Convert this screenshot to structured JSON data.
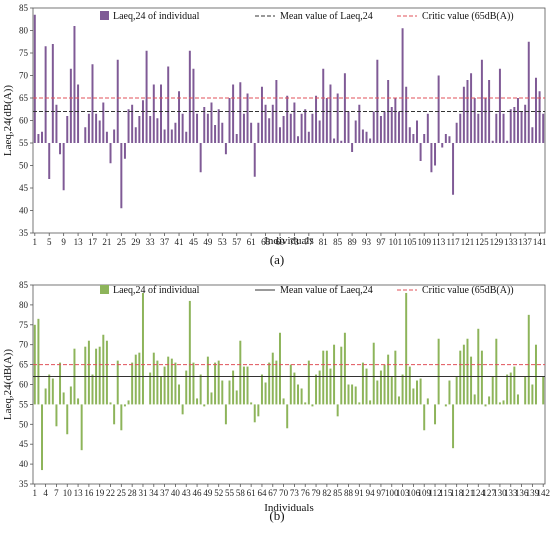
{
  "chart_data": [
    {
      "type": "bar",
      "panel_label": "(a)",
      "xlabel": "Individuals",
      "ylabel": "Laeq,24(dB(A))",
      "ylim": [
        35,
        85
      ],
      "yticks": [
        35,
        40,
        45,
        50,
        55,
        60,
        65,
        70,
        75,
        80,
        85
      ],
      "baseline": 55,
      "n": 142,
      "xticks": [
        1,
        5,
        9,
        13,
        17,
        21,
        25,
        29,
        33,
        37,
        41,
        45,
        49,
        53,
        57,
        61,
        65,
        69,
        73,
        77,
        81,
        85,
        89,
        93,
        97,
        101,
        105,
        109,
        113,
        117,
        121,
        125,
        129,
        133,
        137,
        141
      ],
      "bar_color": "#7f5a96",
      "legend": {
        "individual": "Laeq,24 of individual",
        "mean": "Mean value of Laeq,24",
        "critic": "Critic value (65dB(A))"
      },
      "mean_value": 62,
      "critic_value": 65,
      "values": [
        83.5,
        57,
        57.5,
        76.5,
        47,
        77,
        63.5,
        52.5,
        44.5,
        61,
        71.5,
        81,
        68,
        55,
        58.5,
        61.5,
        72.5,
        61.5,
        60,
        64,
        57.5,
        50.5,
        58,
        73.5,
        40.5,
        51.5,
        62.5,
        63.5,
        58.5,
        61,
        64.5,
        75.5,
        61,
        68,
        60.5,
        68,
        58,
        72,
        58,
        59.5,
        66.5,
        61.5,
        57.5,
        75.5,
        71.5,
        61.5,
        48.5,
        63,
        61.5,
        64,
        59,
        62.5,
        59.5,
        52.5,
        65,
        68,
        57,
        68.5,
        61.5,
        66,
        59.5,
        47.5,
        59.5,
        67.5,
        63.5,
        60.5,
        63.5,
        69,
        58.5,
        61,
        65.5,
        61.5,
        64,
        56.5,
        61.5,
        62.5,
        57.5,
        61.5,
        65.5,
        60,
        71.5,
        65,
        68,
        56,
        66,
        55.5,
        70.5,
        62,
        53,
        60,
        63.5,
        58,
        57.5,
        56,
        62,
        73.5,
        61,
        62,
        69,
        63,
        65,
        62,
        80.5,
        67.5,
        58.5,
        57,
        60,
        51,
        57,
        61.5,
        48.5,
        50,
        70,
        54,
        57,
        56.5,
        43.5,
        59.5,
        61.5,
        67.5,
        69,
        70.5,
        65,
        61.5,
        73.5,
        65,
        69,
        55.5,
        61.5,
        71.5,
        61.5,
        55.5,
        62.5,
        63,
        65,
        62,
        63.5,
        77.5,
        58.5,
        69.5,
        66.5,
        61.5
      ]
    },
    {
      "type": "bar",
      "panel_label": "(b)",
      "xlabel": "Individuals",
      "ylabel": "Laeq,24(dB(A))",
      "ylim": [
        35,
        85
      ],
      "yticks": [
        35,
        40,
        45,
        50,
        55,
        60,
        65,
        70,
        75,
        80,
        85
      ],
      "baseline": 55,
      "n": 142,
      "xticks": [
        1,
        4,
        7,
        10,
        13,
        16,
        19,
        22,
        25,
        28,
        31,
        34,
        37,
        40,
        43,
        46,
        49,
        52,
        55,
        58,
        61,
        64,
        67,
        70,
        73,
        76,
        79,
        82,
        85,
        88,
        91,
        94,
        97,
        100,
        103,
        106,
        109,
        112,
        115,
        118,
        121,
        124,
        127,
        130,
        133,
        136,
        139,
        142
      ],
      "bar_color": "#8db45a",
      "legend": {
        "individual": "Laeq,24 of individual",
        "mean": "Mean value of Laeq,24",
        "critic": "Critic value (65dB(A))"
      },
      "mean_value": 62,
      "critic_value": 65,
      "values": [
        75,
        76.5,
        38.5,
        59,
        62.5,
        61.5,
        49.5,
        65.5,
        58,
        47.5,
        59.5,
        69,
        56.5,
        43.5,
        69.5,
        71,
        62.5,
        69,
        69.5,
        72.5,
        71,
        55.5,
        50,
        66,
        48.5,
        54.5,
        56,
        65.5,
        67.5,
        68,
        83,
        55,
        63,
        68,
        66,
        62,
        64.5,
        67,
        66.5,
        65.5,
        60,
        52.5,
        63.5,
        81,
        65.5,
        56.5,
        62.5,
        54.5,
        67,
        58,
        65.5,
        66,
        61,
        50,
        61,
        63.5,
        58.5,
        71,
        64.5,
        64.5,
        55.5,
        50.5,
        52,
        62.5,
        60.5,
        65.5,
        68,
        66,
        73,
        56.5,
        49,
        65,
        63,
        60,
        59,
        55.5,
        66,
        54.5,
        62.5,
        63.5,
        68.5,
        68.5,
        64,
        70,
        52,
        69.5,
        73,
        60,
        60,
        59.5,
        55.5,
        65.5,
        64,
        56,
        70.5,
        61,
        63.5,
        65,
        67.5,
        62,
        68.5,
        57,
        62.5,
        83,
        64.5,
        59,
        61,
        61.5,
        48.5,
        56.5,
        55,
        50,
        71.5,
        55,
        54.5,
        61,
        44,
        62,
        68.5,
        70,
        71.5,
        67,
        57.5,
        74,
        68.5,
        54.5,
        57,
        62,
        71.5,
        55.5,
        56,
        62.5,
        63,
        64.5,
        57.5,
        55,
        62,
        77.5,
        60,
        70,
        55,
        62
      ]
    }
  ]
}
